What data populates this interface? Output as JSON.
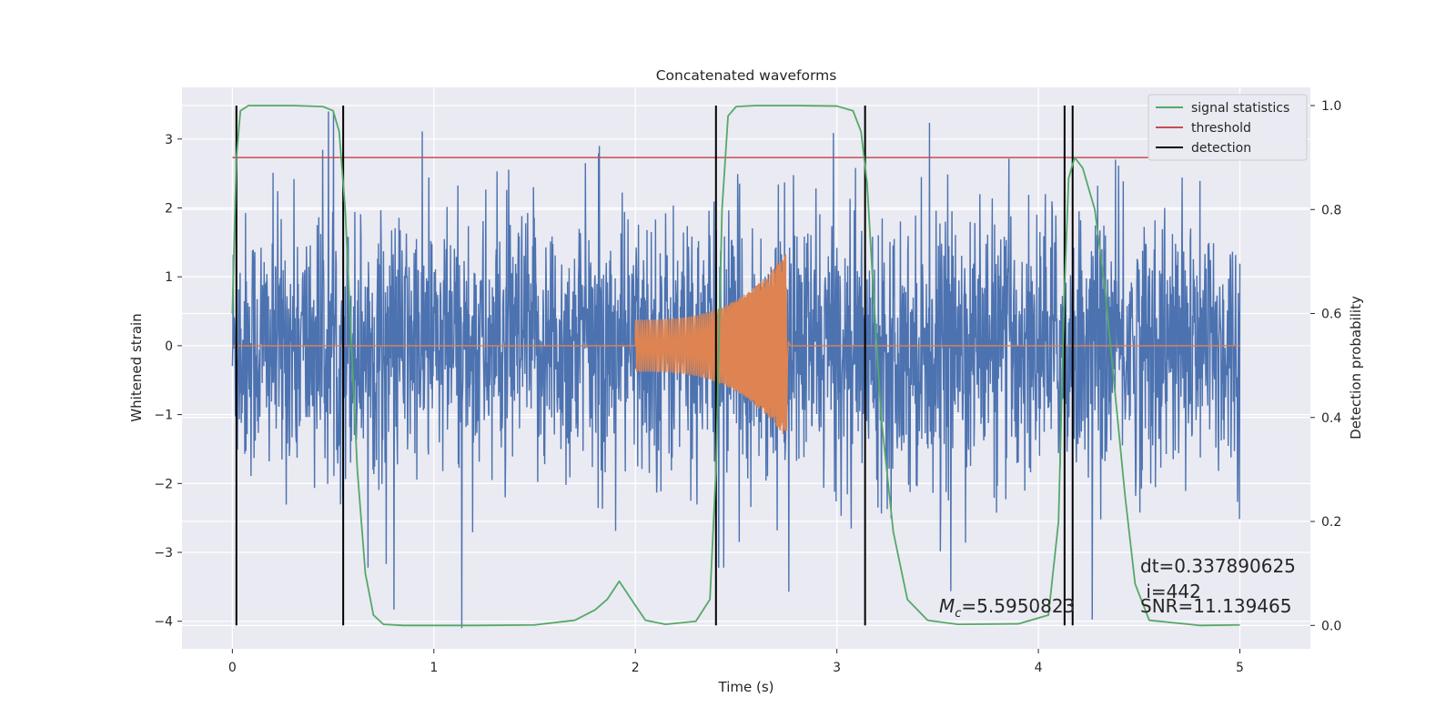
{
  "chart_data": {
    "type": "line",
    "title": "Concatenated waveforms",
    "xlabel": "Time (s)",
    "ylabel": "Whitened strain",
    "y2label": "Detection probability",
    "xlim": [
      -0.25,
      5.35
    ],
    "ylim": [
      -4.4,
      3.75
    ],
    "y2lim": [
      -0.045,
      1.035
    ],
    "xticks": [
      0,
      1,
      2,
      3,
      4,
      5
    ],
    "yticks": [
      -4,
      -3,
      -2,
      -1,
      0,
      1,
      2,
      3
    ],
    "y2ticks": [
      0.0,
      0.2,
      0.4,
      0.6,
      0.8,
      1.0
    ],
    "y2tick_labels": [
      "0.0",
      "0.2",
      "0.4",
      "0.6",
      "0.8",
      "1.0"
    ],
    "ytick_labels": [
      "−4",
      "−3",
      "−2",
      "−1",
      "0",
      "1",
      "2",
      "3"
    ],
    "grid": true,
    "legend_position": "top-right",
    "colors": {
      "strain": "#4c72b0",
      "template": "#dd8452",
      "signal": "#55a868",
      "threshold": "#c44e52",
      "detection": "#000000",
      "background": "#eaeaf2"
    },
    "series": [
      {
        "name": "signal statistics",
        "axis": "right",
        "x": [
          0,
          0.02,
          0.04,
          0.08,
          0.15,
          0.3,
          0.45,
          0.5,
          0.53,
          0.56,
          0.59,
          0.62,
          0.66,
          0.7,
          0.75,
          0.85,
          1.2,
          1.5,
          1.7,
          1.8,
          1.86,
          1.92,
          1.98,
          2.05,
          2.15,
          2.3,
          2.37,
          2.4,
          2.43,
          2.46,
          2.5,
          2.6,
          2.8,
          3.0,
          3.08,
          3.12,
          3.15,
          3.18,
          3.22,
          3.28,
          3.35,
          3.45,
          3.6,
          3.9,
          4.05,
          4.1,
          4.13,
          4.15,
          4.18,
          4.22,
          4.28,
          4.33,
          4.38,
          4.43,
          4.48,
          4.55,
          4.8,
          5.0
        ],
        "values": [
          0.6,
          0.9,
          0.99,
          1.0,
          1.0,
          1.0,
          0.998,
          0.99,
          0.95,
          0.8,
          0.55,
          0.3,
          0.1,
          0.02,
          0.002,
          0.0,
          0.0,
          0.001,
          0.01,
          0.03,
          0.05,
          0.085,
          0.05,
          0.01,
          0.002,
          0.008,
          0.05,
          0.3,
          0.8,
          0.98,
          0.998,
          1.0,
          1.0,
          0.999,
          0.99,
          0.95,
          0.85,
          0.65,
          0.4,
          0.18,
          0.05,
          0.01,
          0.002,
          0.003,
          0.02,
          0.2,
          0.65,
          0.86,
          0.9,
          0.88,
          0.8,
          0.65,
          0.45,
          0.25,
          0.08,
          0.01,
          0.0,
          0.001
        ]
      },
      {
        "name": "threshold",
        "axis": "right",
        "x": [
          0,
          5.1
        ],
        "values": [
          0.9,
          0.9
        ]
      },
      {
        "name": "detection",
        "axis": "right",
        "lines_x": [
          0.02,
          0.55,
          2.4,
          3.14,
          4.13,
          4.17
        ],
        "y_range": [
          0.0,
          1.0
        ]
      }
    ],
    "strain_noise": {
      "axis": "left",
      "x_range": [
        0,
        5
      ],
      "typical_envelope": [
        -2.0,
        2.0
      ],
      "peaks": [
        -4.1,
        3.4
      ]
    },
    "template_waveform": {
      "axis": "left",
      "x_range": [
        2.0,
        2.75
      ],
      "envelope_start": 0.38,
      "envelope_end": 1.35,
      "merger_time": 2.74
    },
    "annotations": {
      "mc_symbol": "M",
      "mc_sub": "c",
      "mc_value": "=5.5950823",
      "dt": "dt=0.337890625",
      "i": " i=442",
      "snr": "SNR=11.139465"
    }
  }
}
